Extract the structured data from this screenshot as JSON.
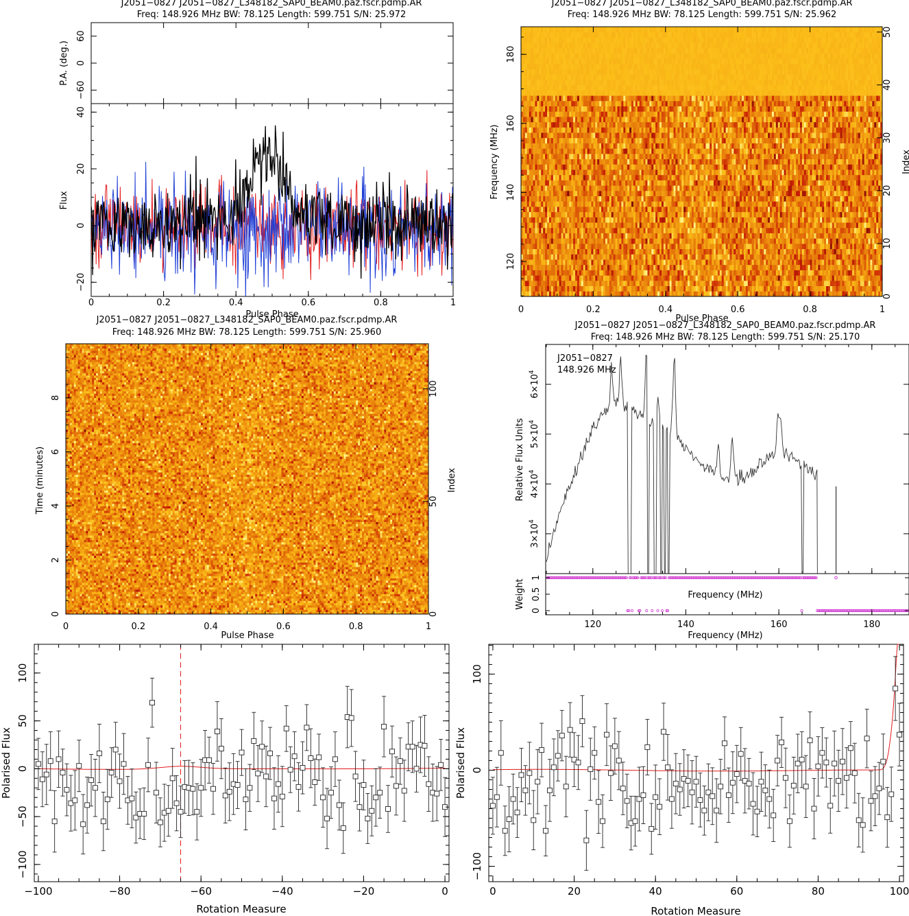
{
  "chart_data": [
    {
      "id": "profile",
      "type": "line",
      "title": "J2051−0827 J2051−0827_L348182_SAP0_BEAM0.paz.fscr.pdmp.AR",
      "subtitle": "Freq: 148.926 MHz BW: 78.125 Length: 599.751 S/N: 25.972",
      "pa_panel": {
        "ylabel": "P.A. (deg.)",
        "ylim": [
          -90,
          90
        ],
        "yticks": [
          -60,
          0,
          60
        ]
      },
      "xlabel": "Pulse Phase",
      "ylabel": "Flux",
      "xlim": [
        0,
        1
      ],
      "ylim": [
        -25,
        43
      ],
      "xticks": [
        0,
        0.2,
        0.4,
        0.6,
        0.8,
        1
      ],
      "yticks": [
        -20,
        0,
        20,
        40
      ],
      "series": [
        {
          "color": "#e31a1c",
          "points": 512,
          "noise_sd": 7,
          "offset": 0
        },
        {
          "color": "#1f3fd6",
          "points": 512,
          "noise_sd": 8,
          "offset": -1
        },
        {
          "color": "#000000",
          "points": 512,
          "noise_sd": 6.5,
          "offset": 1,
          "pulse": {
            "center": 0.49,
            "width": 0.09,
            "height": 24
          }
        }
      ]
    },
    {
      "id": "freq-phase",
      "type": "heatmap",
      "title": "J2051−0827 J2051−0827_L348182_SAP0_BEAM0.paz.fscr.pdmp.AR",
      "subtitle": "Freq: 148.926 MHz BW: 78.125 Length: 599.751 S/N: 25.962",
      "xlabel": "Pulse Phase",
      "ylabel": "Frequency (MHz)",
      "ylabel_right": "Index",
      "xlim": [
        0,
        1
      ],
      "ylim": [
        109.86,
        187.99
      ],
      "index_lim": [
        0,
        51
      ],
      "xticks": [
        0,
        0.2,
        0.4,
        0.6,
        0.8,
        1
      ],
      "yticks": [
        120,
        140,
        160,
        180
      ],
      "index_ticks": [
        0,
        10,
        20,
        30,
        40,
        50
      ],
      "flagged_above_mhz": 168.5
    },
    {
      "id": "time-phase",
      "type": "heatmap",
      "title": "J2051−0827 J2051−0827_L348182_SAP0_BEAM0.paz.fscr.pdmp.AR",
      "subtitle": "Freq: 148.926 MHz BW: 78.125 Length: 599.751 S/N: 25.960",
      "xlabel": "Pulse Phase",
      "ylabel": "Time (minutes)",
      "ylabel_right": "Index",
      "xlim": [
        0,
        1
      ],
      "ylim": [
        0,
        10
      ],
      "index_lim": [
        0,
        120
      ],
      "xticks": [
        0,
        0.2,
        0.4,
        0.6,
        0.8,
        1
      ],
      "yticks": [
        0,
        2,
        4,
        6,
        8
      ],
      "index_ticks": [
        0,
        50,
        100
      ]
    },
    {
      "id": "bandpass",
      "type": "line",
      "title": "J2051−0827 J2051−0827_L348182_SAP0_BEAM0.paz.fscr.pdmp.AR",
      "subtitle": "Freq: 148.926 MHz BW: 78.125 Length: 599.751 S/N: 25.170",
      "annotation": [
        "J2051−0827",
        "148.926 MHz"
      ],
      "xlabel": "Frequency (MHz)",
      "ylabel": "Relative Flux Units",
      "xlim": [
        109.86,
        187.99
      ],
      "ylim": [
        22000,
        68000
      ],
      "xticks": [
        120,
        140,
        160,
        180
      ],
      "yticks": [
        {
          "value": 30000,
          "mantissa": "3×10",
          "exp": "4"
        },
        {
          "value": 40000,
          "mantissa": "4×10",
          "exp": "4"
        },
        {
          "value": 50000,
          "mantissa": "5×10",
          "exp": "4"
        },
        {
          "value": 60000,
          "mantissa": "6×10",
          "exp": "4"
        }
      ],
      "spectrum": {
        "knots": [
          [
            110,
            24500
          ],
          [
            113,
            35000
          ],
          [
            117,
            44000
          ],
          [
            120,
            51000
          ],
          [
            122,
            54000
          ],
          [
            125,
            56000
          ],
          [
            128,
            55500
          ],
          [
            131,
            53000
          ],
          [
            134,
            51500
          ],
          [
            137,
            50500
          ],
          [
            140,
            47000
          ],
          [
            143,
            44000
          ],
          [
            146,
            42000
          ],
          [
            149,
            41000
          ],
          [
            152,
            41200
          ],
          [
            155,
            43000
          ],
          [
            158,
            45500
          ],
          [
            161,
            46500
          ],
          [
            164,
            44500
          ],
          [
            166,
            43200
          ],
          [
            168.3,
            42000
          ]
        ],
        "spikes": [
          [
            124,
            63000
          ],
          [
            126,
            65000
          ],
          [
            131.5,
            66800
          ],
          [
            134,
            57000
          ],
          [
            137.5,
            65500
          ],
          [
            147,
            49000
          ],
          [
            150,
            49000
          ],
          [
            159.8,
            53500
          ],
          [
            160.4,
            52500
          ]
        ],
        "gaps": [
          [
            127.6,
            128.4
          ],
          [
            131.7,
            132.2
          ],
          [
            133.1,
            133.6
          ],
          [
            134.4,
            134.8
          ],
          [
            135.3,
            135.7
          ],
          [
            136.0,
            136.5
          ],
          [
            164.8,
            165.2
          ]
        ],
        "isolated_line": [
          172.3,
          39500
        ],
        "end_mhz": 168.3
      },
      "weight_panel": {
        "ylabel": "Weight",
        "xlabel": "Frequency (MHz)",
        "ylim": [
          0,
          1
        ],
        "yticks": [
          0,
          0.5,
          1
        ],
        "zero_weight_mhz": [
          127.6,
          128.4,
          130,
          131.5,
          132.7,
          134,
          135,
          136,
          164.9,
          168.3
        ],
        "flagged_above_mhz": 168.5,
        "color": "#d23bd2"
      }
    },
    {
      "id": "rm-left",
      "type": "scatter",
      "xlabel": "Rotation Measure",
      "ylabel": "Polarised Flux",
      "xlim": [
        -101,
        1
      ],
      "ylim": [
        -118,
        130
      ],
      "xticks": [
        -100,
        -80,
        -60,
        -40,
        -20,
        0
      ],
      "yticks": [
        -100,
        -50,
        0,
        50,
        100
      ],
      "marker_line": -65,
      "fit_color": "#e31a1c",
      "points": [
        [
          -100,
          5
        ],
        [
          -99,
          -11
        ],
        [
          -98,
          -6
        ],
        [
          -97,
          8
        ],
        [
          -96,
          -55
        ],
        [
          -95,
          10
        ],
        [
          -94,
          -4
        ],
        [
          -93,
          -22
        ],
        [
          -92,
          -36
        ],
        [
          -91,
          -33
        ],
        [
          -90,
          3
        ],
        [
          -89,
          -58
        ],
        [
          -88,
          -38
        ],
        [
          -87,
          -12
        ],
        [
          -86,
          -20
        ],
        [
          -85,
          16
        ],
        [
          -84,
          -55
        ],
        [
          -83,
          -32
        ],
        [
          -82,
          -4
        ],
        [
          -81,
          20
        ],
        [
          -80,
          -13
        ],
        [
          -79,
          5
        ],
        [
          -78,
          -33
        ],
        [
          -77,
          -31
        ],
        [
          -76,
          -51
        ],
        [
          -75,
          -47
        ],
        [
          -74,
          -47
        ],
        [
          -73,
          4
        ],
        [
          -72,
          69
        ],
        [
          -71,
          -25
        ],
        [
          -70,
          -56
        ],
        [
          -69,
          -46
        ],
        [
          -68,
          -44
        ],
        [
          -67,
          -10
        ],
        [
          -66,
          -36
        ],
        [
          -65,
          -45
        ],
        [
          -64,
          -19
        ],
        [
          -63,
          -20
        ],
        [
          -62,
          -21
        ],
        [
          -61,
          -45
        ],
        [
          -60,
          -20
        ],
        [
          -59,
          9
        ],
        [
          -58,
          9
        ],
        [
          -57,
          -21
        ],
        [
          -56,
          39
        ],
        [
          -55,
          21
        ],
        [
          -54,
          -28
        ],
        [
          -53,
          -24
        ],
        [
          -52,
          -16
        ],
        [
          -51,
          -17
        ],
        [
          -50,
          17
        ],
        [
          -49,
          -32
        ],
        [
          -48,
          -20
        ],
        [
          -47,
          29
        ],
        [
          -46,
          -5
        ],
        [
          -45,
          23
        ],
        [
          -44,
          -8
        ],
        [
          -43,
          16
        ],
        [
          -42,
          -31
        ],
        [
          -41,
          -16
        ],
        [
          -40,
          -29
        ],
        [
          -39,
          42
        ],
        [
          -38,
          -1
        ],
        [
          -37,
          13
        ],
        [
          -36,
          -19
        ],
        [
          -35,
          1
        ],
        [
          -34,
          43
        ],
        [
          -33,
          11
        ],
        [
          -32,
          -14
        ],
        [
          -31,
          12
        ],
        [
          -30,
          -30
        ],
        [
          -29,
          -52
        ],
        [
          -28,
          -25
        ],
        [
          -27,
          10
        ],
        [
          -26,
          -38
        ],
        [
          -25,
          -62
        ],
        [
          -24,
          54
        ],
        [
          -23,
          53
        ],
        [
          -22,
          -8
        ],
        [
          -21,
          -40
        ],
        [
          -20,
          -17
        ],
        [
          -19,
          -52
        ],
        [
          -18,
          -44
        ],
        [
          -17,
          -30
        ],
        [
          -16,
          -25
        ],
        [
          -15,
          44
        ],
        [
          -14,
          -42
        ],
        [
          -13,
          18
        ],
        [
          -12,
          -18
        ],
        [
          -11,
          8
        ],
        [
          -10,
          -23
        ],
        [
          -9,
          23
        ],
        [
          -8,
          23
        ],
        [
          -7,
          0
        ],
        [
          -6,
          25
        ],
        [
          -5,
          24
        ],
        [
          -4,
          -16
        ],
        [
          -3,
          -25
        ],
        [
          -2,
          -26
        ],
        [
          -1,
          4
        ],
        [
          0,
          -40
        ]
      ],
      "error": 28
    },
    {
      "id": "rm-right",
      "type": "scatter",
      "xlabel": "Rotation Measure",
      "ylabel": "Polarised Flux",
      "xlim": [
        -1,
        101
      ],
      "ylim": [
        -116,
        131
      ],
      "xticks": [
        0,
        20,
        40,
        60,
        80,
        100
      ],
      "yticks": [
        -100,
        0,
        100
      ],
      "fit_color": "#e31a1c",
      "fit_rise_start": 95,
      "points": [
        [
          0,
          -37
        ],
        [
          1,
          -28
        ],
        [
          2,
          18
        ],
        [
          3,
          -63
        ],
        [
          4,
          -51
        ],
        [
          5,
          -30
        ],
        [
          6,
          -44
        ],
        [
          7,
          -5
        ],
        [
          8,
          -21
        ],
        [
          9,
          -3
        ],
        [
          10,
          -52
        ],
        [
          11,
          -12
        ],
        [
          12,
          21
        ],
        [
          13,
          -63
        ],
        [
          14,
          -21
        ],
        [
          15,
          3
        ],
        [
          16,
          15
        ],
        [
          17,
          36
        ],
        [
          18,
          -17
        ],
        [
          19,
          42
        ],
        [
          20,
          11
        ],
        [
          21,
          8
        ],
        [
          22,
          51
        ],
        [
          23,
          -73
        ],
        [
          24,
          1
        ],
        [
          25,
          18
        ],
        [
          26,
          -33
        ],
        [
          27,
          -53
        ],
        [
          28,
          37
        ],
        [
          29,
          -3
        ],
        [
          30,
          25
        ],
        [
          31,
          10
        ],
        [
          32,
          -19
        ],
        [
          33,
          -32
        ],
        [
          34,
          -55
        ],
        [
          35,
          -53
        ],
        [
          36,
          -30
        ],
        [
          37,
          -26
        ],
        [
          38,
          24
        ],
        [
          39,
          -61
        ],
        [
          40,
          -28
        ],
        [
          41,
          -38
        ],
        [
          42,
          40
        ],
        [
          43,
          3
        ],
        [
          44,
          -30
        ],
        [
          45,
          -14
        ],
        [
          46,
          -20
        ],
        [
          47,
          -9
        ],
        [
          48,
          -11
        ],
        [
          49,
          -23
        ],
        [
          50,
          -12
        ],
        [
          51,
          -31
        ],
        [
          52,
          -42
        ],
        [
          53,
          -23
        ],
        [
          54,
          -27
        ],
        [
          55,
          -42
        ],
        [
          56,
          -17
        ],
        [
          57,
          28
        ],
        [
          58,
          -26
        ],
        [
          59,
          -13
        ],
        [
          60,
          -4
        ],
        [
          61,
          17
        ],
        [
          62,
          -11
        ],
        [
          63,
          -14
        ],
        [
          64,
          -35
        ],
        [
          65,
          -43
        ],
        [
          66,
          -12
        ],
        [
          67,
          -21
        ],
        [
          68,
          -30
        ],
        [
          69,
          -47
        ],
        [
          70,
          10
        ],
        [
          71,
          29
        ],
        [
          72,
          -8
        ],
        [
          73,
          -53
        ],
        [
          74,
          -16
        ],
        [
          75,
          7
        ],
        [
          76,
          11
        ],
        [
          77,
          -17
        ],
        [
          78,
          31
        ],
        [
          79,
          -40
        ],
        [
          80,
          4
        ],
        [
          81,
          18
        ],
        [
          82,
          8
        ],
        [
          83,
          -37
        ],
        [
          84,
          7
        ],
        [
          85,
          -11
        ],
        [
          86,
          9
        ],
        [
          87,
          -8
        ],
        [
          88,
          23
        ],
        [
          89,
          -3
        ],
        [
          90,
          -52
        ],
        [
          91,
          -57
        ],
        [
          92,
          33
        ],
        [
          93,
          -32
        ],
        [
          94,
          -27
        ],
        [
          95,
          -19
        ],
        [
          96,
          9
        ],
        [
          97,
          -49
        ],
        [
          98,
          -25
        ],
        [
          99,
          85
        ],
        [
          100,
          37
        ]
      ],
      "error": 30
    }
  ]
}
